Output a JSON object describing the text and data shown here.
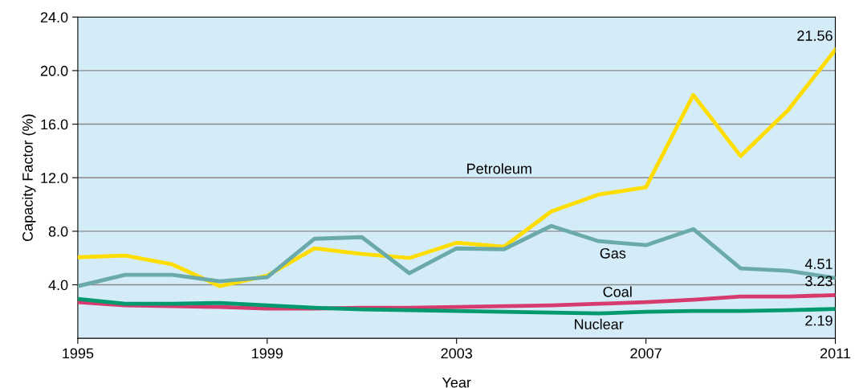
{
  "chart_data": {
    "type": "line",
    "xlabel": "Year",
    "ylabel": "Capacity Factor (%)",
    "x": [
      1995,
      1996,
      1997,
      1998,
      1999,
      2000,
      2001,
      2002,
      2003,
      2004,
      2005,
      2006,
      2007,
      2008,
      2009,
      2010,
      2011
    ],
    "xlim": [
      1995,
      2011
    ],
    "xticks": [
      1995,
      1999,
      2003,
      2007,
      2011
    ],
    "ylim": [
      0,
      24
    ],
    "yticks": [
      {
        "value": 4,
        "label": "4.0"
      },
      {
        "value": 8,
        "label": "8.0"
      },
      {
        "value": 12,
        "label": "12.0"
      },
      {
        "value": 16,
        "label": "16.0"
      },
      {
        "value": 20,
        "label": "20.0"
      },
      {
        "value": 24,
        "label": "24.0"
      }
    ],
    "grid": "y",
    "legend": false,
    "marker": "none",
    "line_style": "solid",
    "series": [
      {
        "name": "Petroleum",
        "color": "#ffdd00",
        "values": [
          6.06,
          6.18,
          5.52,
          3.9,
          4.68,
          6.72,
          6.3,
          6.0,
          7.14,
          6.84,
          9.48,
          10.74,
          11.28,
          18.18,
          13.62,
          17.04,
          21.56
        ],
        "value_labels": [
          null,
          null,
          null,
          null,
          null,
          null,
          null,
          null,
          null,
          null,
          null,
          null,
          null,
          null,
          null,
          null,
          "21.56"
        ]
      },
      {
        "name": "Gas",
        "color": "#6aaaa8",
        "values": [
          3.9,
          4.74,
          4.74,
          4.26,
          4.56,
          7.44,
          7.56,
          4.86,
          6.72,
          6.66,
          8.4,
          7.26,
          6.96,
          8.16,
          5.22,
          5.04,
          4.51
        ],
        "value_labels": [
          null,
          null,
          null,
          null,
          null,
          null,
          null,
          null,
          null,
          null,
          null,
          null,
          null,
          null,
          null,
          null,
          "4.51"
        ]
      },
      {
        "name": "Coal",
        "color": "#d63a6e",
        "values": [
          2.7,
          2.46,
          2.4,
          2.34,
          2.22,
          2.22,
          2.28,
          2.28,
          2.34,
          2.4,
          2.46,
          2.58,
          2.7,
          2.88,
          3.12,
          3.12,
          3.23
        ],
        "value_labels": [
          null,
          null,
          null,
          null,
          null,
          null,
          null,
          null,
          null,
          null,
          null,
          null,
          null,
          null,
          null,
          null,
          "3.23"
        ]
      },
      {
        "name": "Nuclear",
        "color": "#009a6e",
        "values": [
          2.94,
          2.58,
          2.58,
          2.64,
          2.46,
          2.28,
          2.16,
          2.1,
          2.04,
          1.98,
          1.92,
          1.86,
          1.98,
          2.04,
          2.04,
          2.1,
          2.19
        ],
        "value_labels": [
          null,
          null,
          null,
          null,
          null,
          null,
          null,
          null,
          null,
          null,
          null,
          null,
          null,
          null,
          null,
          null,
          "2.19"
        ]
      }
    ]
  }
}
